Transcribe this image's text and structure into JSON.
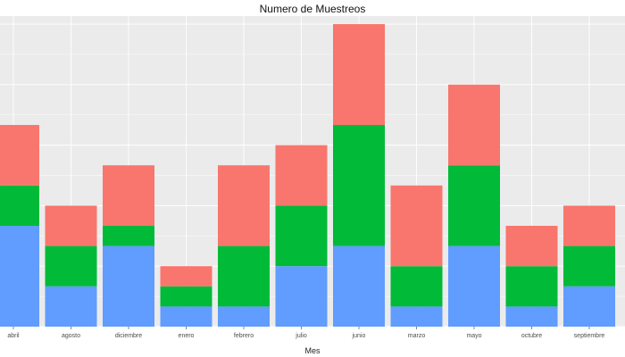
{
  "chart_data": {
    "type": "bar",
    "stacked": true,
    "title": "Numero de Muestreos",
    "xlabel": "Mes",
    "ylabel": "",
    "ylim": [
      0,
      15.4
    ],
    "grid": true,
    "legend": "none",
    "categories": [
      "abril",
      "agosto",
      "diciembre",
      "enero",
      "febrero",
      "julio",
      "junio",
      "marzo",
      "mayo",
      "octubre",
      "septiembre"
    ],
    "series": [
      {
        "color": "#619CFF",
        "values": [
          5,
          2,
          4,
          1,
          1,
          3,
          4,
          1,
          4,
          1,
          2
        ]
      },
      {
        "color": "#00BA38",
        "values": [
          2,
          2,
          1,
          1,
          3,
          3,
          6,
          2,
          4,
          2,
          2
        ]
      },
      {
        "color": "#F8766D",
        "values": [
          3,
          2,
          3,
          1,
          4,
          3,
          5,
          4,
          4,
          2,
          2
        ]
      }
    ],
    "colors": {
      "panel": "#EBEBEB",
      "grid": "#FFFFFF"
    }
  }
}
